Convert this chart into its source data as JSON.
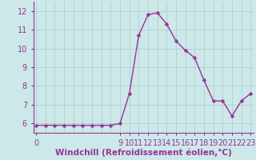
{
  "xlabel": "Windchill (Refroidissement éolien,°C)",
  "x_values": [
    0,
    1,
    2,
    3,
    4,
    5,
    6,
    7,
    8,
    9,
    10,
    11,
    12,
    13,
    14,
    15,
    16,
    17,
    18,
    19,
    20,
    21,
    22,
    23
  ],
  "y_values": [
    5.9,
    5.9,
    5.9,
    5.9,
    5.9,
    5.9,
    5.9,
    5.9,
    5.9,
    6.0,
    7.6,
    10.7,
    11.8,
    11.9,
    11.3,
    10.4,
    9.9,
    9.5,
    8.3,
    7.2,
    7.2,
    6.4,
    7.2,
    7.6
  ],
  "line_color": "#993399",
  "marker_color": "#993399",
  "bg_color": "#cce8e8",
  "grid_color": "#aacccc",
  "spine_color": "#993399",
  "tick_label_color": "#993399",
  "xlabel_color": "#993399",
  "ylim": [
    5.5,
    12.5
  ],
  "xlim": [
    -0.3,
    23.3
  ],
  "yticks": [
    6,
    7,
    8,
    9,
    10,
    11,
    12
  ],
  "xtick_positions": [
    0,
    9,
    10,
    11,
    12,
    13,
    14,
    15,
    16,
    17,
    18,
    19,
    20,
    21,
    22,
    23
  ],
  "xtick_labels": [
    "0",
    "9",
    "10",
    "11",
    "12",
    "13",
    "14",
    "15",
    "16",
    "17",
    "18",
    "19",
    "20",
    "21",
    "22",
    "23"
  ],
  "grid_x_positions": [
    0,
    1,
    2,
    3,
    4,
    5,
    6,
    7,
    8,
    9,
    10,
    11,
    12,
    13,
    14,
    15,
    16,
    17,
    18,
    19,
    20,
    21,
    22,
    23
  ],
  "marker_style": "D",
  "marker_size": 2.5,
  "line_width": 1.0,
  "font_size_xlabel": 7.5,
  "font_size_ticks": 7
}
